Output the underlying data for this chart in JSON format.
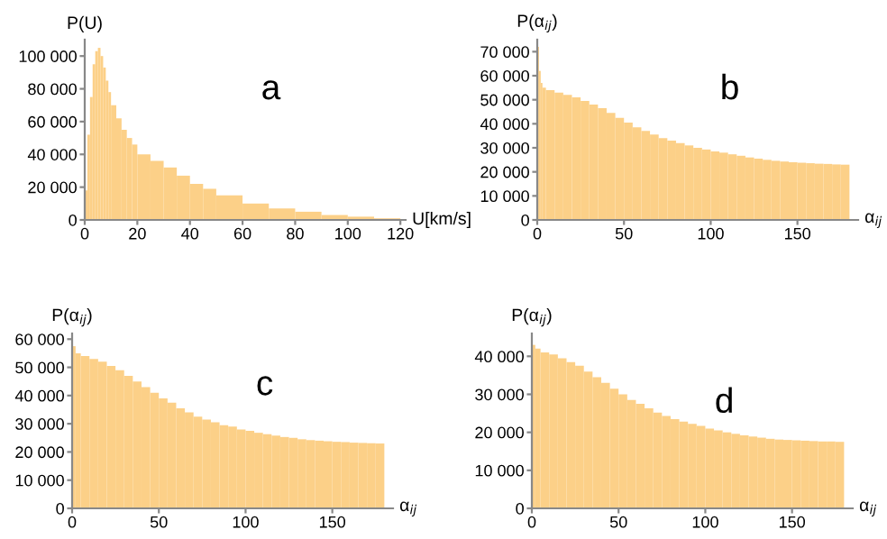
{
  "chart_data": [
    {
      "type": "histogram",
      "ylabel": "P(U)",
      "xlabel": "U[km/s]",
      "annotations": [
        "a"
      ],
      "color": "#fcd088",
      "bins": [
        0,
        1,
        2,
        3,
        4,
        5,
        6,
        7,
        8,
        9,
        10,
        12,
        14,
        16,
        18,
        20,
        25,
        30,
        35,
        40,
        45,
        50,
        60,
        70,
        80,
        90,
        100,
        110,
        120
      ],
      "values": [
        18000,
        52000,
        75000,
        95000,
        103000,
        105000,
        100000,
        93000,
        85000,
        78000,
        70000,
        62000,
        55000,
        50000,
        46000,
        40000,
        36000,
        32000,
        27000,
        22000,
        19000,
        15000,
        10000,
        7000,
        5000,
        3000,
        2000,
        1000
      ],
      "xlim": [
        0,
        122
      ],
      "ylim": [
        0,
        110000
      ],
      "xticks": [
        0,
        20,
        40,
        60,
        80,
        100,
        120
      ],
      "yticks": [
        0,
        {
          "value": 20000,
          "label": "20 000"
        },
        {
          "value": 40000,
          "label": "40 000"
        },
        {
          "value": 60000,
          "label": "60 000"
        },
        {
          "value": 80000,
          "label": "80 000"
        },
        {
          "value": 100000,
          "label": "100 000"
        }
      ],
      "grid": false
    },
    {
      "type": "histogram",
      "ylabel": "P(α$_{ij}$)",
      "xlabel": "α$_{ij}$",
      "annotations": [
        "b"
      ],
      "color": "#fcd088",
      "bins": [
        0,
        1,
        2,
        3,
        5,
        10,
        15,
        20,
        25,
        30,
        35,
        40,
        45,
        50,
        55,
        60,
        65,
        70,
        75,
        80,
        85,
        90,
        95,
        100,
        105,
        110,
        115,
        120,
        125,
        130,
        135,
        140,
        145,
        150,
        155,
        160,
        165,
        170,
        175,
        180
      ],
      "values": [
        72000,
        62000,
        57000,
        55000,
        54000,
        53000,
        52000,
        51000,
        49500,
        48000,
        46500,
        44500,
        42500,
        40500,
        38500,
        37000,
        35500,
        34000,
        33000,
        32000,
        31000,
        30000,
        29300,
        28500,
        28000,
        27300,
        26700,
        26000,
        25500,
        25000,
        24600,
        24300,
        24000,
        23800,
        23600,
        23400,
        23300,
        23100,
        23000
      ],
      "xlim": [
        0,
        185
      ],
      "ylim": [
        0,
        75000
      ],
      "xticks": [
        0,
        50,
        100,
        150
      ],
      "yticks": [
        0,
        {
          "value": 10000,
          "label": "10 000"
        },
        {
          "value": 20000,
          "label": "20 000"
        },
        {
          "value": 30000,
          "label": "30 000"
        },
        {
          "value": 40000,
          "label": "40 000"
        },
        {
          "value": 50000,
          "label": "50 000"
        },
        {
          "value": 60000,
          "label": "60 000"
        },
        {
          "value": 70000,
          "label": "70 000"
        }
      ],
      "grid": false
    },
    {
      "type": "histogram",
      "ylabel": "P(α$_{ij}$)",
      "xlabel": "α$_{ij}$",
      "annotations": [
        "c"
      ],
      "color": "#fcd088",
      "bins": [
        0,
        2,
        5,
        10,
        15,
        20,
        25,
        30,
        35,
        40,
        45,
        50,
        55,
        60,
        65,
        70,
        75,
        80,
        85,
        90,
        95,
        100,
        105,
        110,
        115,
        120,
        125,
        130,
        135,
        140,
        145,
        150,
        155,
        160,
        165,
        170,
        175,
        180
      ],
      "values": [
        57500,
        55000,
        54000,
        53000,
        52000,
        50500,
        49000,
        47000,
        45000,
        43000,
        41000,
        39000,
        37500,
        35500,
        34000,
        32500,
        31500,
        30500,
        29500,
        29000,
        28000,
        27500,
        26800,
        26300,
        25800,
        25300,
        25000,
        24500,
        24200,
        24000,
        23800,
        23600,
        23500,
        23300,
        23200,
        23100,
        23000
      ],
      "xlim": [
        0,
        185
      ],
      "ylim": [
        0,
        62000
      ],
      "xticks": [
        0,
        50,
        100,
        150
      ],
      "yticks": [
        0,
        {
          "value": 10000,
          "label": "10 000"
        },
        {
          "value": 20000,
          "label": "20 000"
        },
        {
          "value": 30000,
          "label": "30 000"
        },
        {
          "value": 40000,
          "label": "40 000"
        },
        {
          "value": 50000,
          "label": "50 000"
        },
        {
          "value": 60000,
          "label": "60 000"
        }
      ],
      "grid": false
    },
    {
      "type": "histogram",
      "ylabel": "P(α$_{ij}$)",
      "xlabel": "α$_{ij}$",
      "annotations": [
        "d"
      ],
      "color": "#fcd088",
      "bins": [
        0,
        2,
        5,
        10,
        15,
        20,
        25,
        30,
        35,
        40,
        45,
        50,
        55,
        60,
        65,
        70,
        75,
        80,
        85,
        90,
        95,
        100,
        105,
        110,
        115,
        120,
        125,
        130,
        135,
        140,
        145,
        150,
        155,
        160,
        165,
        170,
        175,
        180
      ],
      "values": [
        43000,
        42000,
        41000,
        40500,
        39500,
        38500,
        37500,
        36000,
        34500,
        33000,
        31500,
        30000,
        28500,
        27500,
        26300,
        25200,
        24300,
        23500,
        22800,
        22200,
        21700,
        21000,
        20500,
        20000,
        19600,
        19200,
        18900,
        18600,
        18300,
        18100,
        18000,
        17900,
        17800,
        17700,
        17600,
        17600,
        17500
      ],
      "xlim": [
        0,
        185
      ],
      "ylim": [
        0,
        46000
      ],
      "xticks": [
        0,
        50,
        100,
        150
      ],
      "yticks": [
        0,
        {
          "value": 10000,
          "label": "10 000"
        },
        {
          "value": 20000,
          "label": "20 000"
        },
        {
          "value": 30000,
          "label": "30 000"
        },
        {
          "value": 40000,
          "label": "40 000"
        }
      ],
      "grid": false
    }
  ]
}
